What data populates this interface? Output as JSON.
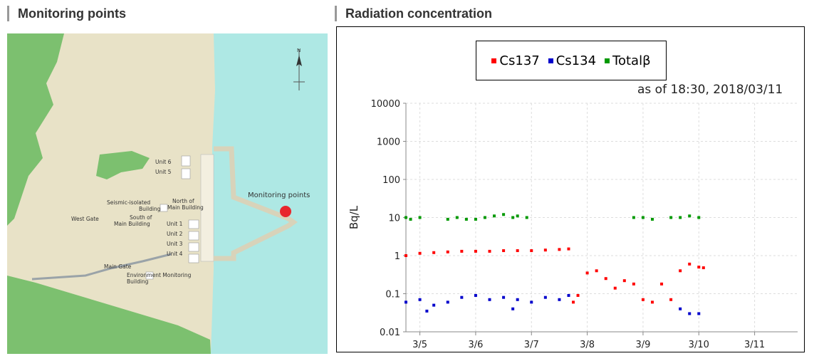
{
  "headers": {
    "map_title": "Monitoring points",
    "chart_title": "Radiation concentration"
  },
  "map": {
    "labels": {
      "unit6": "Unit 6",
      "unit5": "Unit 5",
      "north_main_1": "North of",
      "north_main_2": "Main Building",
      "seismic_1": "Seismic-isolated",
      "seismic_2": "Building",
      "west_gate": "West Gate",
      "south_main_1": "South of",
      "south_main_2": "Main Building",
      "unit1": "Unit 1",
      "unit2": "Unit 2",
      "unit3": "Unit 3",
      "unit4": "Unit 4",
      "main_gate": "Main Gate",
      "env_1": "Environment Monitoring",
      "env_2": "Building",
      "monitoring_points": "Monitoring points",
      "north": "N"
    },
    "colors": {
      "sea": "#aee8e4",
      "land": "#e8e2c7",
      "forest": "#7cc06f",
      "marker": "#e8262c"
    }
  },
  "chart": {
    "as_of": "as of 18:30, 2018/03/11"
  },
  "chart_data": {
    "type": "scatter",
    "title": "",
    "ylabel": "Bq/L",
    "yscale": "log",
    "ylim": [
      0.01,
      10000
    ],
    "yticks": [
      "0.01",
      "0.1",
      "1",
      "10",
      "100",
      "1000",
      "10000"
    ],
    "xlim": [
      "3/4 18:00",
      "3/11 18:30"
    ],
    "xticks": [
      "3/5",
      "3/6",
      "3/7",
      "3/8",
      "3/9",
      "3/10",
      "3/11"
    ],
    "grid": true,
    "legend": "top",
    "series": [
      {
        "name": "Cs137",
        "color": "#ff0000",
        "points": [
          [
            "3/4 18:00",
            1.0
          ],
          [
            "3/5 00:00",
            1.15
          ],
          [
            "3/5 06:00",
            1.2
          ],
          [
            "3/5 12:00",
            1.25
          ],
          [
            "3/5 18:00",
            1.3
          ],
          [
            "3/6 00:00",
            1.3
          ],
          [
            "3/6 06:00",
            1.3
          ],
          [
            "3/6 12:00",
            1.35
          ],
          [
            "3/6 18:00",
            1.35
          ],
          [
            "3/7 00:00",
            1.35
          ],
          [
            "3/7 06:00",
            1.4
          ],
          [
            "3/7 12:00",
            1.45
          ],
          [
            "3/7 16:00",
            1.5
          ],
          [
            "3/7 18:00",
            0.06
          ],
          [
            "3/7 20:00",
            0.09
          ],
          [
            "3/8 00:00",
            0.35
          ],
          [
            "3/8 04:00",
            0.4
          ],
          [
            "3/8 08:00",
            0.25
          ],
          [
            "3/8 12:00",
            0.14
          ],
          [
            "3/8 16:00",
            0.22
          ],
          [
            "3/8 20:00",
            0.18
          ],
          [
            "3/9 00:00",
            0.07
          ],
          [
            "3/9 04:00",
            0.06
          ],
          [
            "3/9 08:00",
            0.18
          ],
          [
            "3/9 12:00",
            0.07
          ],
          [
            "3/9 16:00",
            0.4
          ],
          [
            "3/9 20:00",
            0.6
          ],
          [
            "3/10 00:00",
            0.5
          ],
          [
            "3/10 02:00",
            0.48
          ]
        ]
      },
      {
        "name": "Cs134",
        "color": "#0000cc",
        "points": [
          [
            "3/4 18:00",
            0.06
          ],
          [
            "3/5 00:00",
            0.07
          ],
          [
            "3/5 03:00",
            0.035
          ],
          [
            "3/5 06:00",
            0.05
          ],
          [
            "3/5 12:00",
            0.06
          ],
          [
            "3/5 18:00",
            0.08
          ],
          [
            "3/6 00:00",
            0.09
          ],
          [
            "3/6 06:00",
            0.07
          ],
          [
            "3/6 12:00",
            0.08
          ],
          [
            "3/6 16:00",
            0.04
          ],
          [
            "3/6 18:00",
            0.07
          ],
          [
            "3/7 00:00",
            0.06
          ],
          [
            "3/7 06:00",
            0.08
          ],
          [
            "3/7 12:00",
            0.07
          ],
          [
            "3/7 16:00",
            0.09
          ],
          [
            "3/9 16:00",
            0.04
          ],
          [
            "3/9 20:00",
            0.03
          ],
          [
            "3/10 00:00",
            0.03
          ]
        ]
      },
      {
        "name": "Totalβ",
        "color": "#009900",
        "points": [
          [
            "3/4 18:00",
            10
          ],
          [
            "3/4 20:00",
            9
          ],
          [
            "3/5 00:00",
            10
          ],
          [
            "3/5 12:00",
            9
          ],
          [
            "3/5 16:00",
            10
          ],
          [
            "3/5 20:00",
            9
          ],
          [
            "3/6 00:00",
            9
          ],
          [
            "3/6 04:00",
            10
          ],
          [
            "3/6 08:00",
            11
          ],
          [
            "3/6 12:00",
            12
          ],
          [
            "3/6 16:00",
            10
          ],
          [
            "3/6 18:00",
            11
          ],
          [
            "3/6 22:00",
            10
          ],
          [
            "3/8 20:00",
            10
          ],
          [
            "3/9 00:00",
            10
          ],
          [
            "3/9 04:00",
            9
          ],
          [
            "3/9 12:00",
            10
          ],
          [
            "3/9 16:00",
            10
          ],
          [
            "3/9 20:00",
            11
          ],
          [
            "3/10 00:00",
            10
          ]
        ]
      }
    ]
  }
}
